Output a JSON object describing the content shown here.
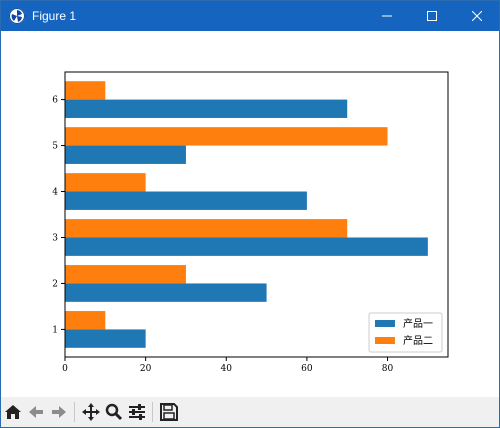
{
  "window": {
    "title": "Figure 1",
    "controls": {
      "minimize": "—",
      "maximize": "☐",
      "close": "✕"
    }
  },
  "toolbar": {
    "buttons": [
      "home-icon",
      "back-icon",
      "forward-icon",
      "pan-icon",
      "zoom-icon",
      "configure-subplots-icon",
      "save-icon"
    ]
  },
  "chart_data": {
    "type": "bar",
    "orientation": "horizontal",
    "categories": [
      "1",
      "2",
      "3",
      "4",
      "5",
      "6"
    ],
    "series": [
      {
        "name": "产品一",
        "color": "#1f77b4",
        "values": [
          20,
          50,
          90,
          60,
          30,
          70
        ]
      },
      {
        "name": "产品二",
        "color": "#ff7f0e",
        "values": [
          10,
          30,
          70,
          20,
          80,
          10
        ]
      }
    ],
    "xlim": [
      0,
      95
    ],
    "x_ticks": [
      "0",
      "20",
      "40",
      "60",
      "80"
    ],
    "title": "",
    "xlabel": "",
    "ylabel": "",
    "grid": false,
    "legend_position": "lower-right"
  }
}
